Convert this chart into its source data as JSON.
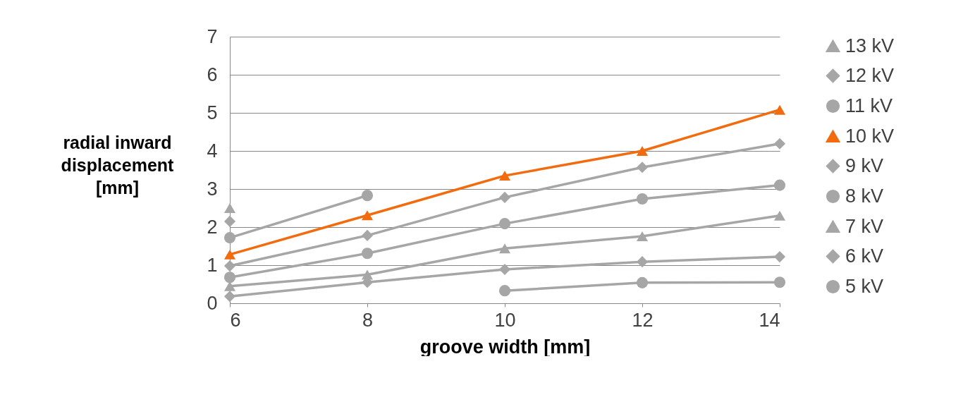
{
  "chart_data": {
    "type": "line",
    "xlabel": "groove width [mm]",
    "ylabel": "radial inward\ndisplacement\n[mm]",
    "x": [
      6,
      8,
      10,
      12,
      14
    ],
    "xlim": [
      6,
      14
    ],
    "xticks": [
      6,
      8,
      10,
      12,
      14
    ],
    "ylim": [
      0,
      7
    ],
    "yticks": [
      0,
      1,
      2,
      3,
      4,
      5,
      6,
      7
    ],
    "grid": "y",
    "legend": "right",
    "series": [
      {
        "name": "13 kV",
        "color": "#a6a6a6",
        "marker": "triangle",
        "values": [
          2.5,
          null,
          null,
          null,
          null
        ]
      },
      {
        "name": "12 kV",
        "color": "#a6a6a6",
        "marker": "diamond",
        "values": [
          2.15,
          null,
          null,
          null,
          null
        ]
      },
      {
        "name": "11 kV",
        "color": "#a6a6a6",
        "marker": "circle",
        "values": [
          1.72,
          2.83,
          null,
          null,
          null
        ]
      },
      {
        "name": "10 kV",
        "color": "#f26b0f",
        "marker": "triangle",
        "values": [
          1.28,
          2.31,
          3.35,
          4.0,
          5.08
        ]
      },
      {
        "name": "9 kV",
        "color": "#a6a6a6",
        "marker": "diamond",
        "values": [
          0.98,
          1.78,
          2.78,
          3.57,
          4.19
        ]
      },
      {
        "name": "8 kV",
        "color": "#a6a6a6",
        "marker": "circle",
        "values": [
          0.68,
          1.31,
          2.09,
          2.74,
          3.1
        ]
      },
      {
        "name": "7 kV",
        "color": "#a6a6a6",
        "marker": "triangle",
        "values": [
          0.45,
          0.75,
          1.44,
          1.76,
          2.3
        ]
      },
      {
        "name": "6 kV",
        "color": "#a6a6a6",
        "marker": "diamond",
        "values": [
          0.18,
          0.55,
          0.89,
          1.09,
          1.22
        ]
      },
      {
        "name": "5 kV",
        "color": "#a6a6a6",
        "marker": "circle",
        "values": [
          null,
          null,
          0.33,
          0.54,
          0.55
        ]
      }
    ]
  }
}
